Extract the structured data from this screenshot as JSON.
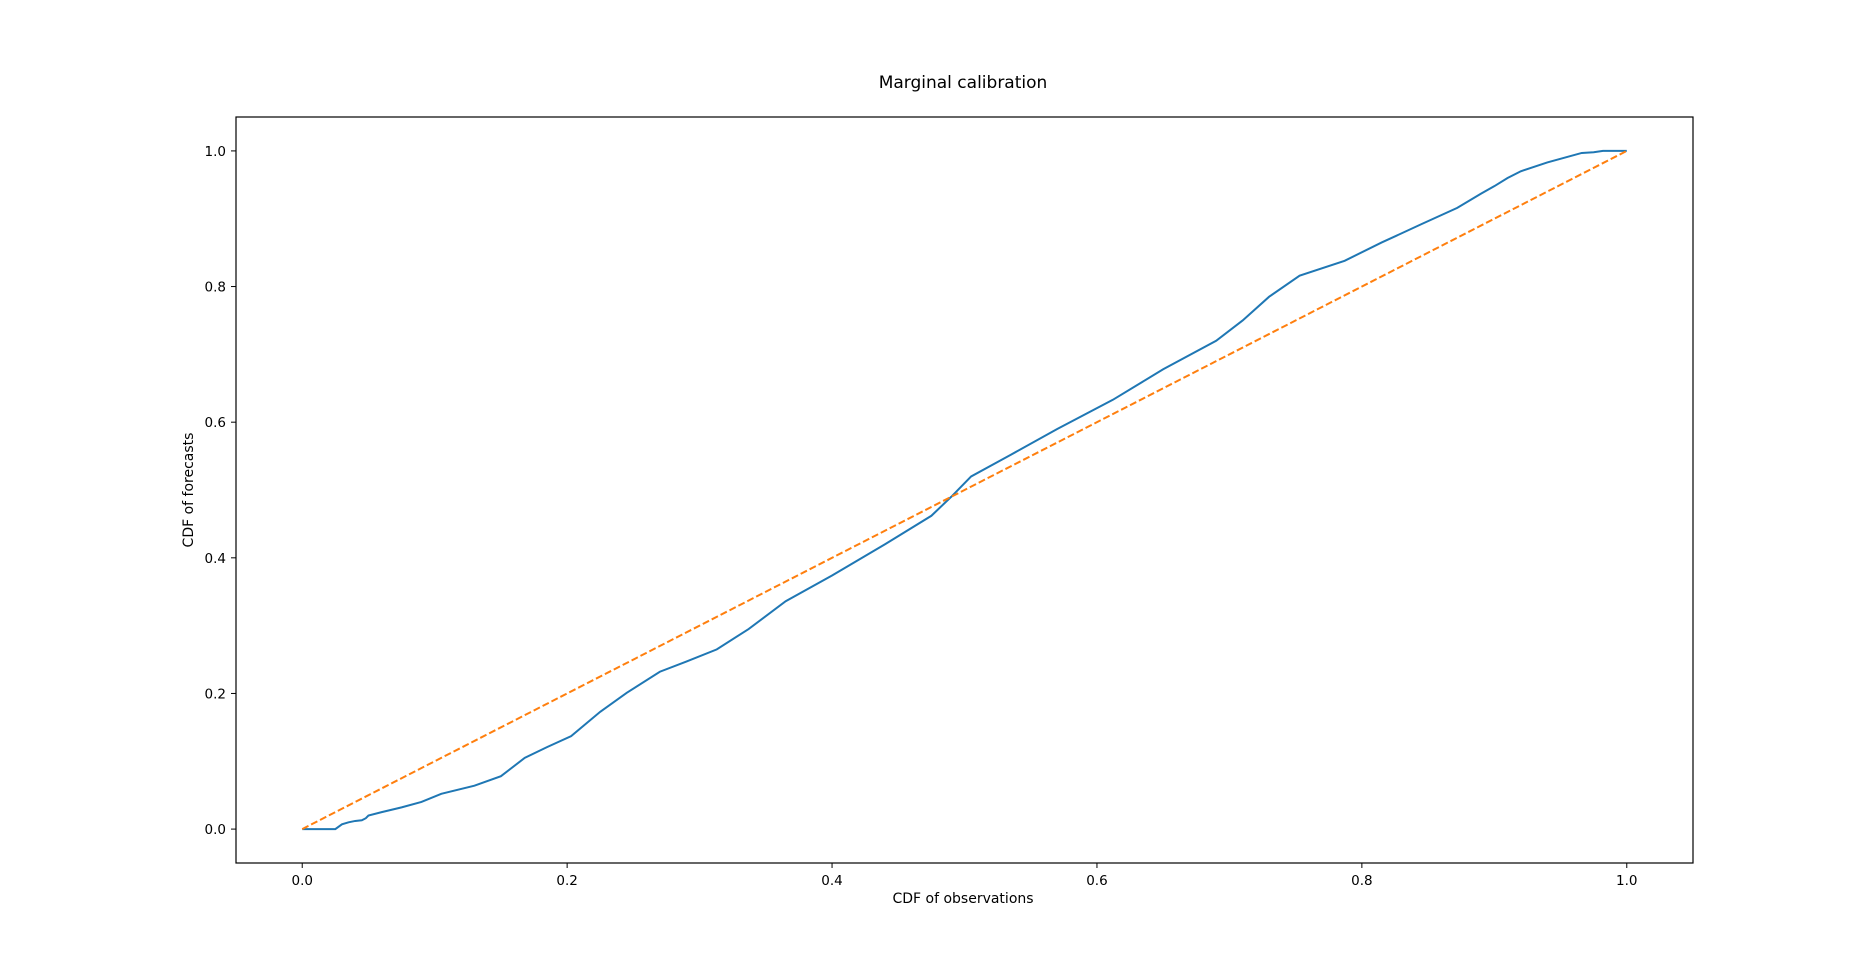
{
  "chart_data": {
    "type": "line",
    "title": "Marginal calibration",
    "xlabel": "CDF of observations",
    "ylabel": "CDF of  forecasts",
    "xlim": [
      -0.05,
      1.05
    ],
    "ylim": [
      -0.05,
      1.05
    ],
    "xticks": [
      0.0,
      0.2,
      0.4,
      0.6,
      0.8,
      1.0
    ],
    "yticks": [
      0.0,
      0.2,
      0.4,
      0.6,
      0.8,
      1.0
    ],
    "xtick_labels": [
      "0.0",
      "0.2",
      "0.4",
      "0.6",
      "0.8",
      "1.0"
    ],
    "ytick_labels": [
      "0.0",
      "0.2",
      "0.4",
      "0.6",
      "0.8",
      "1.0"
    ],
    "grid": false,
    "series": [
      {
        "color": "#1f77b4",
        "style": "solid",
        "x": [
          0.0,
          0.01,
          0.02,
          0.025,
          0.03,
          0.035,
          0.04,
          0.045,
          0.048,
          0.05,
          0.06,
          0.075,
          0.09,
          0.105,
          0.13,
          0.15,
          0.168,
          0.185,
          0.203,
          0.225,
          0.245,
          0.27,
          0.29,
          0.313,
          0.337,
          0.365,
          0.4,
          0.44,
          0.475,
          0.49,
          0.505,
          0.535,
          0.57,
          0.612,
          0.65,
          0.69,
          0.71,
          0.73,
          0.753,
          0.787,
          0.815,
          0.845,
          0.872,
          0.89,
          0.9,
          0.91,
          0.92,
          0.94,
          0.966,
          0.975,
          0.982,
          0.99,
          1.0
        ],
        "y": [
          0.0,
          0.0,
          0.0,
          0.0,
          0.007,
          0.01,
          0.012,
          0.013,
          0.016,
          0.02,
          0.025,
          0.032,
          0.04,
          0.052,
          0.064,
          0.078,
          0.105,
          0.121,
          0.137,
          0.173,
          0.201,
          0.232,
          0.247,
          0.265,
          0.295,
          0.336,
          0.374,
          0.42,
          0.462,
          0.49,
          0.52,
          0.552,
          0.59,
          0.633,
          0.678,
          0.72,
          0.75,
          0.785,
          0.816,
          0.838,
          0.865,
          0.892,
          0.916,
          0.937,
          0.948,
          0.96,
          0.97,
          0.983,
          0.997,
          0.998,
          1.0,
          1.0,
          1.0
        ]
      },
      {
        "color": "#ff7f0e",
        "style": "dashed",
        "x": [
          0.0,
          1.0
        ],
        "y": [
          0.0,
          1.0
        ]
      }
    ]
  }
}
